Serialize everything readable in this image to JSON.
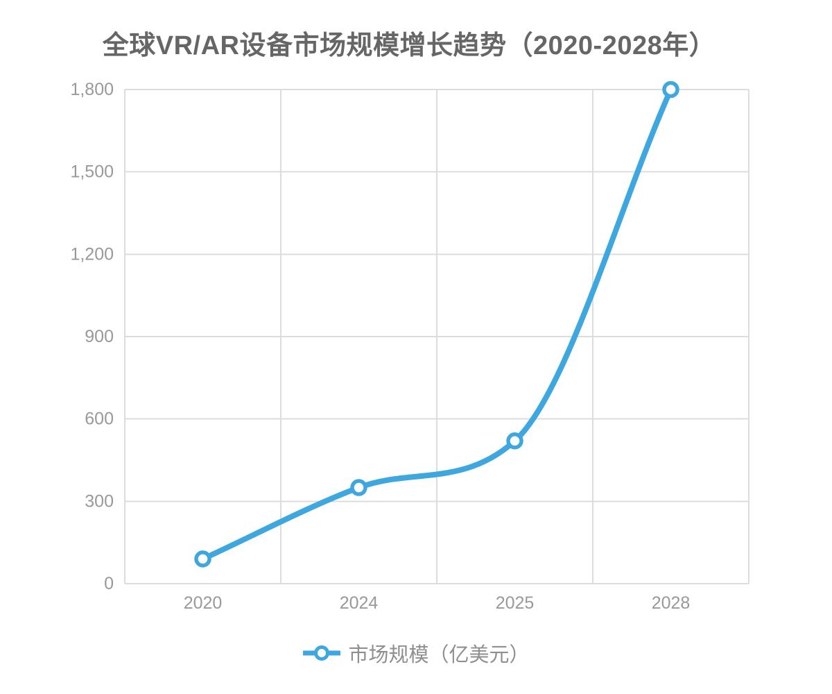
{
  "chart_data": {
    "type": "line",
    "title": "全球VR/AR设备市场规模增长趋势（2020-2028年）",
    "categories": [
      "2020",
      "2024",
      "2025",
      "2028"
    ],
    "series": [
      {
        "name": "市场规模（亿美元）",
        "values": [
          90,
          350,
          520,
          1800
        ]
      }
    ],
    "xlabel": "",
    "ylabel": "",
    "ylim": [
      0,
      1800
    ],
    "ytick_step": 300,
    "ytick_labels": [
      "0",
      "300",
      "600",
      "900",
      "1,200",
      "1,500",
      "1,800"
    ],
    "grid": true,
    "smooth": true,
    "legend_position": "bottom",
    "colors": {
      "line": "#3FA7DF",
      "marker_fill": "#FFFFFF",
      "grid": "#DCDCDC",
      "axis_label": "#999999",
      "title": "#666666",
      "legend_label": "#8F8F8F"
    }
  }
}
